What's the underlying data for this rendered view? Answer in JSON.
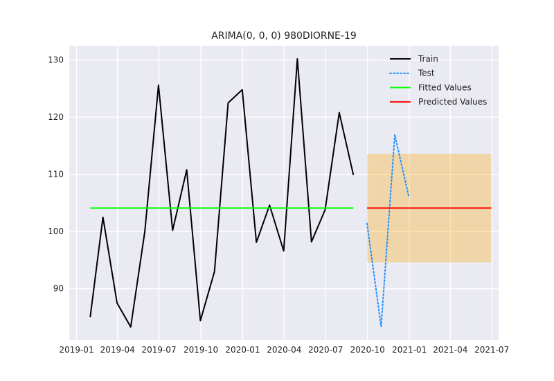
{
  "chart_data": {
    "type": "line",
    "title": "ARIMA(0, 0, 0) 980DIORNE-19",
    "xlabel": "",
    "ylabel": "",
    "x_axis_type": "date",
    "xlim": [
      "2018-12-16",
      "2021-07-16"
    ],
    "ylim": [
      81.0,
      132.5
    ],
    "grid": true,
    "legend_position": "top-right",
    "x_ticks": [
      {
        "date": "2019-01-01",
        "label": "2019-01"
      },
      {
        "date": "2019-04-01",
        "label": "2019-04"
      },
      {
        "date": "2019-07-01",
        "label": "2019-07"
      },
      {
        "date": "2019-10-01",
        "label": "2019-10"
      },
      {
        "date": "2020-01-01",
        "label": "2020-01"
      },
      {
        "date": "2020-04-01",
        "label": "2020-04"
      },
      {
        "date": "2020-07-01",
        "label": "2020-07"
      },
      {
        "date": "2020-10-01",
        "label": "2020-10"
      },
      {
        "date": "2021-01-01",
        "label": "2021-01"
      },
      {
        "date": "2021-04-01",
        "label": "2021-04"
      },
      {
        "date": "2021-07-01",
        "label": "2021-07"
      }
    ],
    "y_ticks": [
      90,
      100,
      110,
      120,
      130
    ],
    "series": [
      {
        "name": "Train",
        "color": "#000000",
        "style": "solid",
        "points": [
          [
            "2019-01-31",
            85.0
          ],
          [
            "2019-02-28",
            102.5
          ],
          [
            "2019-03-31",
            87.5
          ],
          [
            "2019-04-30",
            83.3
          ],
          [
            "2019-05-31",
            100.0
          ],
          [
            "2019-06-30",
            125.6
          ],
          [
            "2019-07-31",
            100.2
          ],
          [
            "2019-08-31",
            110.8
          ],
          [
            "2019-09-30",
            84.4
          ],
          [
            "2019-10-31",
            93.0
          ],
          [
            "2019-11-30",
            122.5
          ],
          [
            "2019-12-31",
            124.8
          ],
          [
            "2020-01-31",
            98.1
          ],
          [
            "2020-02-29",
            104.6
          ],
          [
            "2020-03-31",
            96.6
          ],
          [
            "2020-04-30",
            130.2
          ],
          [
            "2020-05-31",
            98.2
          ],
          [
            "2020-06-30",
            103.8
          ],
          [
            "2020-07-31",
            120.8
          ],
          [
            "2020-08-31",
            109.9
          ]
        ]
      },
      {
        "name": "Test",
        "color": "#1e90ff",
        "style": "dotted",
        "points": [
          [
            "2020-09-30",
            101.4
          ],
          [
            "2020-10-31",
            83.4
          ],
          [
            "2020-11-30",
            116.9
          ],
          [
            "2020-12-31",
            106.0
          ]
        ]
      },
      {
        "name": "Fitted Values",
        "color": "#00ff00",
        "style": "solid",
        "points": [
          [
            "2019-01-31",
            104.1
          ],
          [
            "2020-08-31",
            104.1
          ]
        ]
      },
      {
        "name": "Predicted Values",
        "color": "#ff0000",
        "style": "solid",
        "points": [
          [
            "2020-09-30",
            104.1
          ],
          [
            "2021-06-30",
            104.1
          ]
        ]
      }
    ],
    "confidence_band": {
      "color": "#ffa500",
      "opacity": 0.3,
      "x_start": "2020-09-30",
      "x_end": "2021-06-30",
      "lower": 94.6,
      "upper": 113.6
    }
  }
}
